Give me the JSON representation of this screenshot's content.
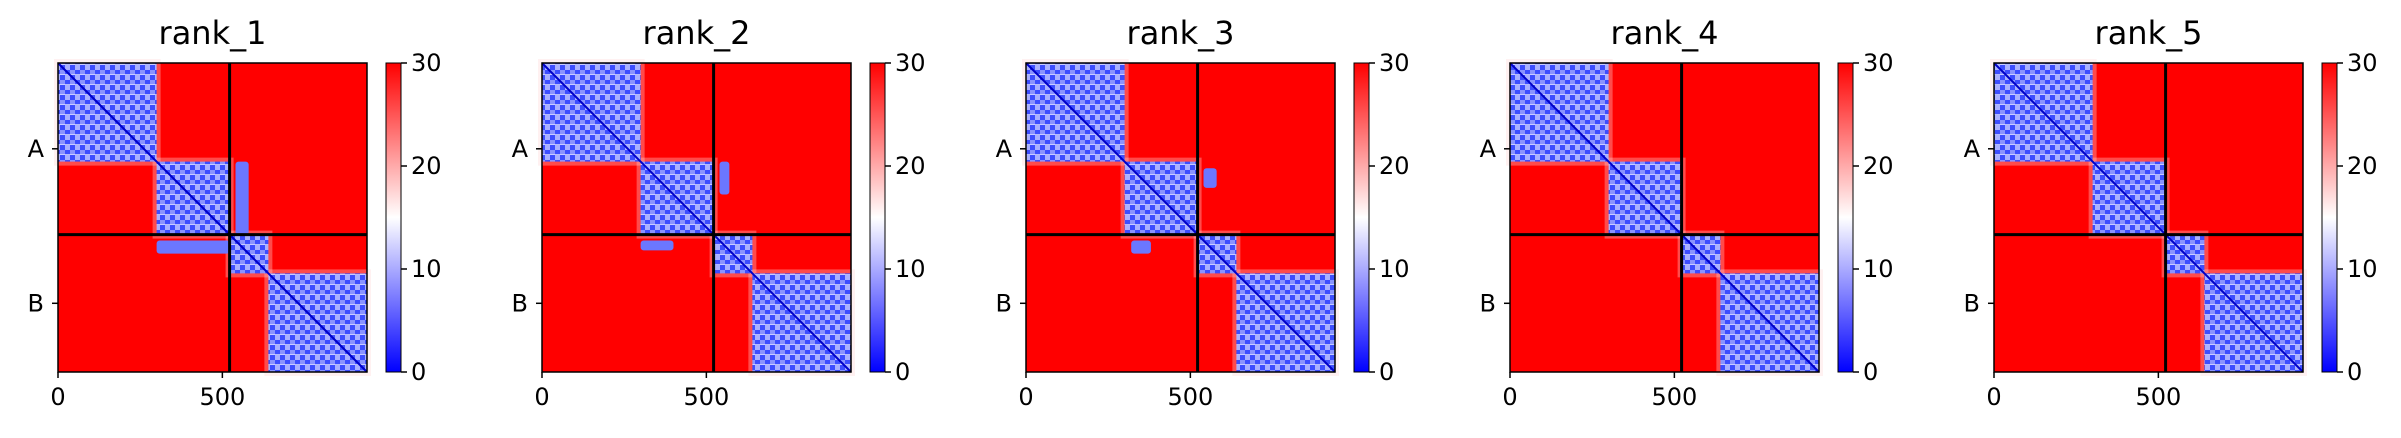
{
  "chart_data": [
    {
      "type": "heatmap",
      "title": "rank_1",
      "chains": [
        {
          "label": "A",
          "length": 522
        },
        {
          "label": "B",
          "length": 418
        }
      ],
      "xticks": [
        0,
        500
      ],
      "colorbar": {
        "min": 0,
        "max": 30,
        "ticks": [
          0,
          10,
          20,
          30
        ],
        "colormap": [
          "#0000ff",
          "#ffffff",
          "#ff0000"
        ]
      },
      "blocks": [
        {
          "start": 0,
          "end": 300
        },
        {
          "start": 300,
          "end": 522
        },
        {
          "start": 522,
          "end": 640
        },
        {
          "start": 640,
          "end": 940
        }
      ],
      "interchain_contacts": [
        {
          "x": [
            540,
            580
          ],
          "y": [
            300,
            522
          ]
        }
      ]
    },
    {
      "type": "heatmap",
      "title": "rank_2",
      "chains": [
        {
          "label": "A",
          "length": 522
        },
        {
          "label": "B",
          "length": 418
        }
      ],
      "xticks": [
        0,
        500
      ],
      "colorbar": {
        "min": 0,
        "max": 30,
        "ticks": [
          0,
          10,
          20,
          30
        ],
        "colormap": [
          "#0000ff",
          "#ffffff",
          "#ff0000"
        ]
      },
      "blocks": [
        {
          "start": 0,
          "end": 300
        },
        {
          "start": 300,
          "end": 522
        },
        {
          "start": 522,
          "end": 640
        },
        {
          "start": 640,
          "end": 940
        }
      ],
      "interchain_contacts": [
        {
          "x": [
            540,
            570
          ],
          "y": [
            300,
            400
          ]
        }
      ]
    },
    {
      "type": "heatmap",
      "title": "rank_3",
      "chains": [
        {
          "label": "A",
          "length": 522
        },
        {
          "label": "B",
          "length": 418
        }
      ],
      "xticks": [
        0,
        500
      ],
      "colorbar": {
        "min": 0,
        "max": 30,
        "ticks": [
          0,
          10,
          20,
          30
        ],
        "colormap": [
          "#0000ff",
          "#ffffff",
          "#ff0000"
        ]
      },
      "blocks": [
        {
          "start": 0,
          "end": 300
        },
        {
          "start": 300,
          "end": 522
        },
        {
          "start": 522,
          "end": 640
        },
        {
          "start": 640,
          "end": 940
        }
      ],
      "interchain_contacts": [
        {
          "x": [
            540,
            580
          ],
          "y": [
            320,
            380
          ]
        }
      ]
    },
    {
      "type": "heatmap",
      "title": "rank_4",
      "chains": [
        {
          "label": "A",
          "length": 522
        },
        {
          "label": "B",
          "length": 418
        }
      ],
      "xticks": [
        0,
        500
      ],
      "colorbar": {
        "min": 0,
        "max": 30,
        "ticks": [
          0,
          10,
          20,
          30
        ],
        "colormap": [
          "#0000ff",
          "#ffffff",
          "#ff0000"
        ]
      },
      "blocks": [
        {
          "start": 0,
          "end": 300
        },
        {
          "start": 300,
          "end": 522
        },
        {
          "start": 522,
          "end": 640
        },
        {
          "start": 640,
          "end": 940
        }
      ],
      "interchain_contacts": []
    },
    {
      "type": "heatmap",
      "title": "rank_5",
      "chains": [
        {
          "label": "A",
          "length": 522
        },
        {
          "label": "B",
          "length": 418
        }
      ],
      "xticks": [
        0,
        500
      ],
      "colorbar": {
        "min": 0,
        "max": 30,
        "ticks": [
          0,
          10,
          20,
          30
        ],
        "colormap": [
          "#0000ff",
          "#ffffff",
          "#ff0000"
        ]
      },
      "blocks": [
        {
          "start": 0,
          "end": 300
        },
        {
          "start": 300,
          "end": 522
        },
        {
          "start": 522,
          "end": 640
        },
        {
          "start": 640,
          "end": 940
        }
      ],
      "interchain_contacts": []
    }
  ]
}
